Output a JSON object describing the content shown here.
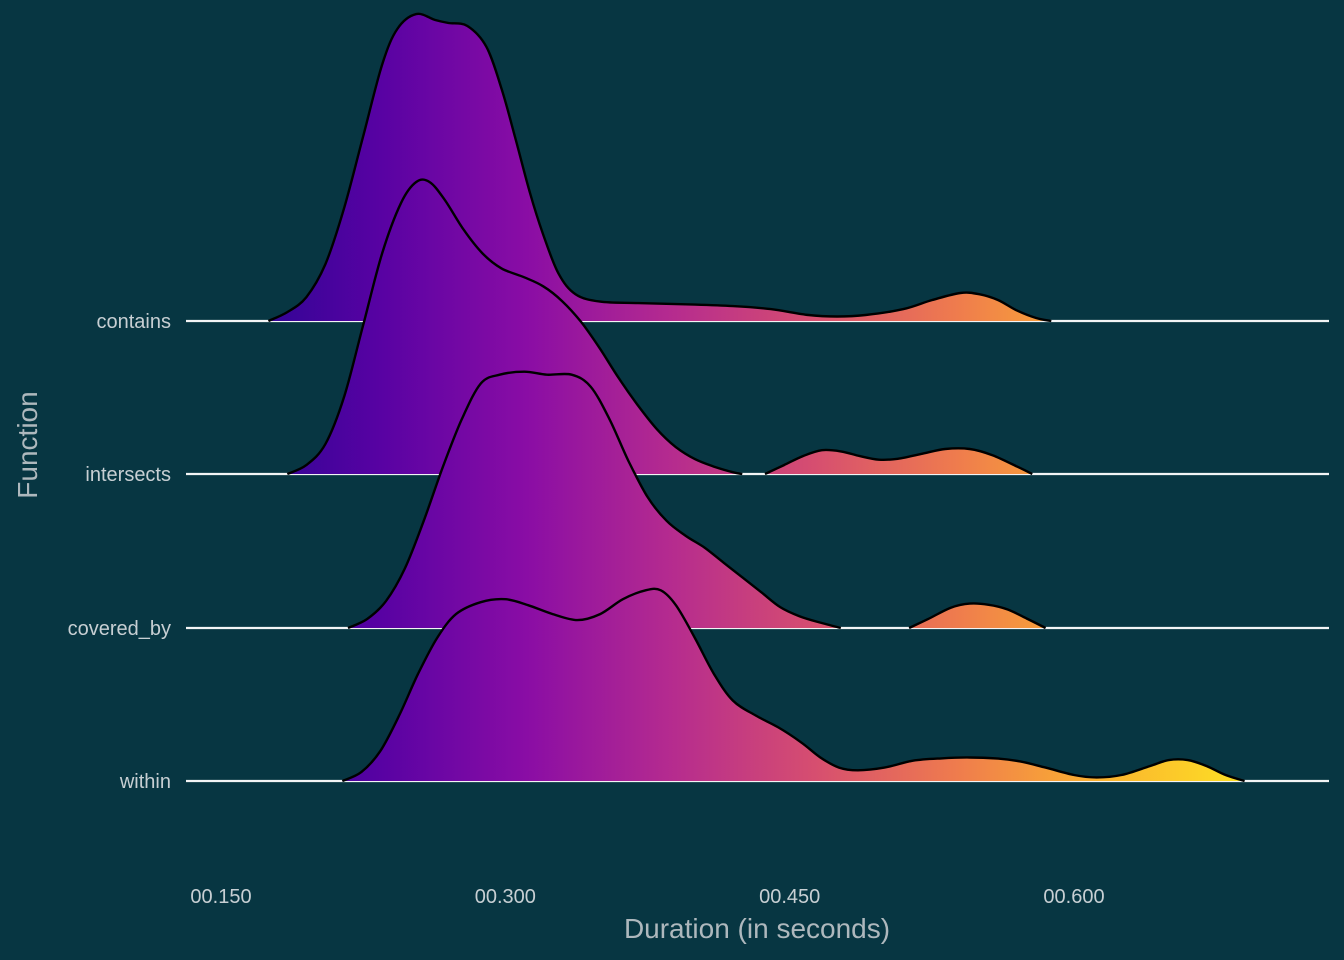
{
  "chart_data": {
    "type": "ridgeline",
    "xlabel": "Duration (in seconds)",
    "ylabel": "Function",
    "x_ticks": [
      {
        "value": 0.15,
        "label": "00.150"
      },
      {
        "value": 0.3,
        "label": "00.300"
      },
      {
        "value": 0.45,
        "label": "00.450"
      },
      {
        "value": 0.6,
        "label": "00.600"
      }
    ],
    "xlim": [
      0.133,
      0.735
    ],
    "categories": [
      "within",
      "covered_by",
      "intersects",
      "contains"
    ],
    "fill_scale": {
      "domain": [
        0.16,
        0.69
      ],
      "stops": [
        "#2a0593",
        "#5902a3",
        "#8a0da5",
        "#b52b8f",
        "#d64e70",
        "#ef7c4d",
        "#fbb32f",
        "#fce024"
      ]
    },
    "series": [
      {
        "name": "contains",
        "segments": [
          [
            [
              0.175,
              0.0
            ],
            [
              0.185,
              0.03
            ],
            [
              0.195,
              0.08
            ],
            [
              0.205,
              0.19
            ],
            [
              0.215,
              0.38
            ],
            [
              0.225,
              0.62
            ],
            [
              0.235,
              0.86
            ],
            [
              0.243,
              0.98
            ],
            [
              0.253,
              1.03
            ],
            [
              0.263,
              1.01
            ],
            [
              0.27,
              1.0
            ],
            [
              0.28,
              0.99
            ],
            [
              0.29,
              0.92
            ],
            [
              0.298,
              0.78
            ],
            [
              0.305,
              0.62
            ],
            [
              0.313,
              0.43
            ],
            [
              0.32,
              0.29
            ],
            [
              0.328,
              0.16
            ],
            [
              0.337,
              0.09
            ],
            [
              0.35,
              0.065
            ],
            [
              0.37,
              0.06
            ],
            [
              0.4,
              0.055
            ],
            [
              0.42,
              0.05
            ],
            [
              0.44,
              0.04
            ],
            [
              0.46,
              0.02
            ],
            [
              0.475,
              0.015
            ],
            [
              0.49,
              0.02
            ],
            [
              0.51,
              0.04
            ],
            [
              0.525,
              0.07
            ],
            [
              0.54,
              0.094
            ],
            [
              0.55,
              0.09
            ],
            [
              0.56,
              0.07
            ],
            [
              0.57,
              0.035
            ],
            [
              0.58,
              0.01
            ],
            [
              0.588,
              0.0
            ]
          ]
        ]
      },
      {
        "name": "intersects",
        "segments": [
          [
            [
              0.185,
              0.0
            ],
            [
              0.195,
              0.03
            ],
            [
              0.205,
              0.1
            ],
            [
              0.215,
              0.26
            ],
            [
              0.225,
              0.5
            ],
            [
              0.235,
              0.74
            ],
            [
              0.245,
              0.91
            ],
            [
              0.253,
              0.98
            ],
            [
              0.26,
              0.98
            ],
            [
              0.268,
              0.92
            ],
            [
              0.278,
              0.82
            ],
            [
              0.288,
              0.74
            ],
            [
              0.298,
              0.69
            ],
            [
              0.31,
              0.66
            ],
            [
              0.32,
              0.63
            ],
            [
              0.33,
              0.58
            ],
            [
              0.34,
              0.51
            ],
            [
              0.35,
              0.42
            ],
            [
              0.36,
              0.32
            ],
            [
              0.37,
              0.23
            ],
            [
              0.38,
              0.15
            ],
            [
              0.39,
              0.09
            ],
            [
              0.4,
              0.05
            ],
            [
              0.41,
              0.025
            ],
            [
              0.42,
              0.006
            ],
            [
              0.425,
              0.0
            ]
          ],
          [
            [
              0.437,
              0.0
            ],
            [
              0.447,
              0.03
            ],
            [
              0.457,
              0.06
            ],
            [
              0.467,
              0.08
            ],
            [
              0.477,
              0.076
            ],
            [
              0.487,
              0.06
            ],
            [
              0.497,
              0.048
            ],
            [
              0.507,
              0.051
            ],
            [
              0.52,
              0.068
            ],
            [
              0.532,
              0.084
            ],
            [
              0.545,
              0.084
            ],
            [
              0.557,
              0.063
            ],
            [
              0.57,
              0.025
            ],
            [
              0.578,
              0.0
            ]
          ]
        ]
      },
      {
        "name": "covered_by",
        "segments": [
          [
            [
              0.217,
              0.0
            ],
            [
              0.227,
              0.03
            ],
            [
              0.237,
              0.09
            ],
            [
              0.247,
              0.2
            ],
            [
              0.257,
              0.36
            ],
            [
              0.267,
              0.54
            ],
            [
              0.277,
              0.7
            ],
            [
              0.287,
              0.82
            ],
            [
              0.297,
              0.85
            ],
            [
              0.31,
              0.86
            ],
            [
              0.322,
              0.85
            ],
            [
              0.335,
              0.85
            ],
            [
              0.345,
              0.81
            ],
            [
              0.355,
              0.7
            ],
            [
              0.365,
              0.56
            ],
            [
              0.375,
              0.44
            ],
            [
              0.385,
              0.36
            ],
            [
              0.395,
              0.31
            ],
            [
              0.405,
              0.27
            ],
            [
              0.415,
              0.22
            ],
            [
              0.425,
              0.17
            ],
            [
              0.435,
              0.12
            ],
            [
              0.445,
              0.07
            ],
            [
              0.455,
              0.04
            ],
            [
              0.465,
              0.02
            ],
            [
              0.477,
              0.0
            ]
          ],
          [
            [
              0.513,
              0.0
            ],
            [
              0.523,
              0.03
            ],
            [
              0.535,
              0.068
            ],
            [
              0.545,
              0.082
            ],
            [
              0.555,
              0.078
            ],
            [
              0.565,
              0.062
            ],
            [
              0.575,
              0.032
            ],
            [
              0.585,
              0.0
            ]
          ]
        ]
      },
      {
        "name": "within",
        "segments": [
          [
            [
              0.214,
              0.0
            ],
            [
              0.224,
              0.03
            ],
            [
              0.234,
              0.1
            ],
            [
              0.244,
              0.22
            ],
            [
              0.254,
              0.36
            ],
            [
              0.264,
              0.48
            ],
            [
              0.274,
              0.56
            ],
            [
              0.287,
              0.6
            ],
            [
              0.3,
              0.61
            ],
            [
              0.312,
              0.59
            ],
            [
              0.325,
              0.56
            ],
            [
              0.338,
              0.54
            ],
            [
              0.35,
              0.56
            ],
            [
              0.362,
              0.61
            ],
            [
              0.374,
              0.64
            ],
            [
              0.382,
              0.64
            ],
            [
              0.39,
              0.59
            ],
            [
              0.4,
              0.48
            ],
            [
              0.41,
              0.36
            ],
            [
              0.42,
              0.27
            ],
            [
              0.432,
              0.22
            ],
            [
              0.444,
              0.18
            ],
            [
              0.456,
              0.13
            ],
            [
              0.466,
              0.08
            ],
            [
              0.476,
              0.045
            ],
            [
              0.486,
              0.036
            ],
            [
              0.5,
              0.045
            ],
            [
              0.515,
              0.068
            ],
            [
              0.53,
              0.076
            ],
            [
              0.545,
              0.079
            ],
            [
              0.56,
              0.075
            ],
            [
              0.572,
              0.065
            ],
            [
              0.585,
              0.045
            ],
            [
              0.6,
              0.02
            ],
            [
              0.612,
              0.012
            ],
            [
              0.625,
              0.02
            ],
            [
              0.64,
              0.05
            ],
            [
              0.65,
              0.07
            ],
            [
              0.66,
              0.07
            ],
            [
              0.67,
              0.05
            ],
            [
              0.68,
              0.02
            ],
            [
              0.69,
              0.0
            ]
          ]
        ]
      }
    ]
  }
}
